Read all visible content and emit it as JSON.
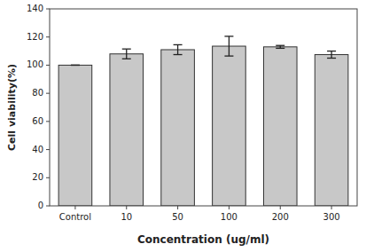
{
  "chart_data": {
    "type": "bar",
    "categories": [
      "Control",
      "10",
      "50",
      "100",
      "200",
      "300"
    ],
    "values": [
      100,
      108,
      111,
      113.5,
      113,
      107.5
    ],
    "errors": [
      0.0,
      3.5,
      3.5,
      7.0,
      1.0,
      2.5
    ],
    "color": "#c8c8c8",
    "xlabel": "Concentration (ug/ml)",
    "ylabel": "Cell viability(%)",
    "ylim": [
      0,
      140
    ],
    "yticks": [
      0,
      20,
      40,
      60,
      80,
      100,
      120,
      140
    ],
    "grid": false
  }
}
